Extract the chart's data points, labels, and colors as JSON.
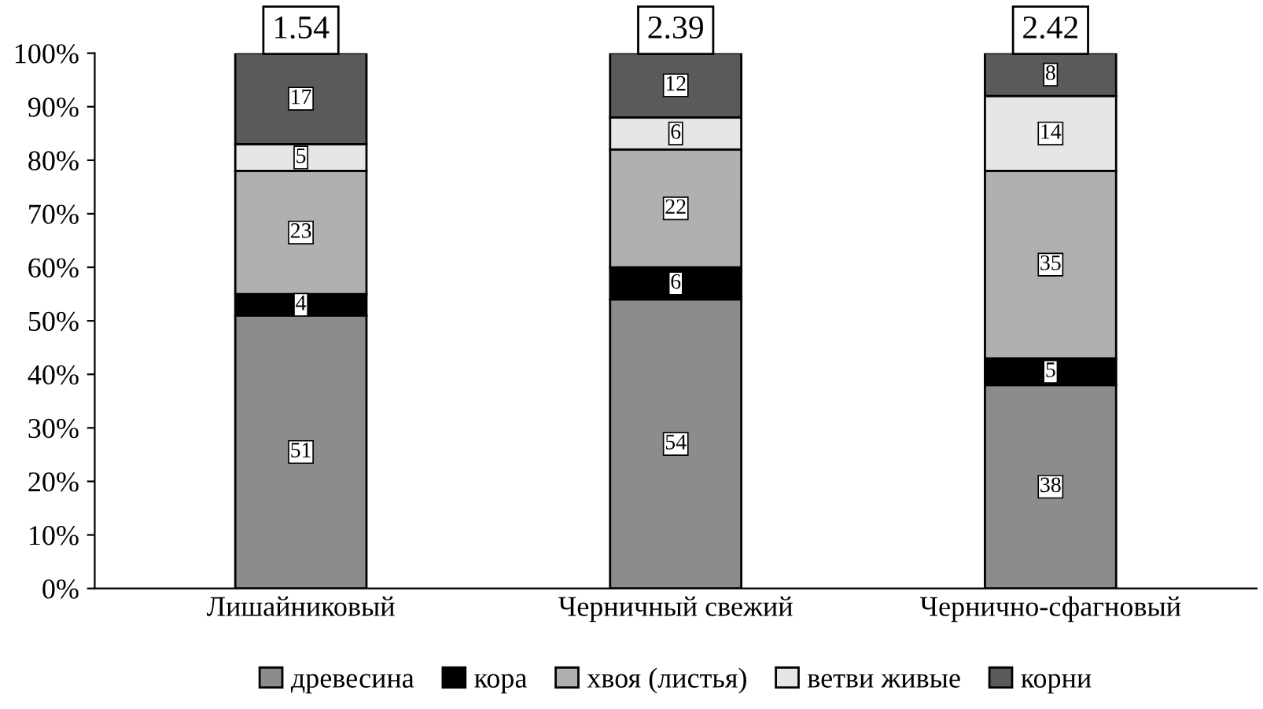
{
  "chart_data": {
    "type": "bar",
    "stacked": true,
    "categories": [
      "Лишайниковый",
      "Черничный свежий",
      "Чернично-сфагновый"
    ],
    "series": [
      {
        "name": "древесина",
        "color": "#8c8c8c",
        "values": [
          51,
          54,
          38
        ]
      },
      {
        "name": "кора",
        "color": "#000000",
        "values": [
          4,
          6,
          5
        ]
      },
      {
        "name": "хвоя (листья)",
        "color": "#b0b0b0",
        "values": [
          23,
          22,
          35
        ]
      },
      {
        "name": "ветви живые",
        "color": "#e6e6e6",
        "values": [
          5,
          6,
          14
        ]
      },
      {
        "name": "корни",
        "color": "#5a5a5a",
        "values": [
          17,
          12,
          8
        ]
      }
    ],
    "data_labels": true,
    "annotations": [
      {
        "text": "1.54",
        "x": "Лишайниковый",
        "y": 100
      },
      {
        "text": "2.39",
        "x": "Черничный свежий",
        "y": 100
      },
      {
        "text": "2.42",
        "x": "Чернично-сфагновый",
        "y": 100
      }
    ],
    "ylim": [
      0,
      100
    ],
    "yticks": [
      {
        "value": 0,
        "label": "0%"
      },
      {
        "value": 10,
        "label": "10%"
      },
      {
        "value": 20,
        "label": "20%"
      },
      {
        "value": 30,
        "label": "30%"
      },
      {
        "value": 40,
        "label": "40%"
      },
      {
        "value": 50,
        "label": "50%"
      },
      {
        "value": 60,
        "label": "60%"
      },
      {
        "value": 70,
        "label": "70%"
      },
      {
        "value": 80,
        "label": "80%"
      },
      {
        "value": 90,
        "label": "90%"
      },
      {
        "value": 100,
        "label": "100%"
      }
    ],
    "grid": false,
    "legend": "bottom"
  }
}
